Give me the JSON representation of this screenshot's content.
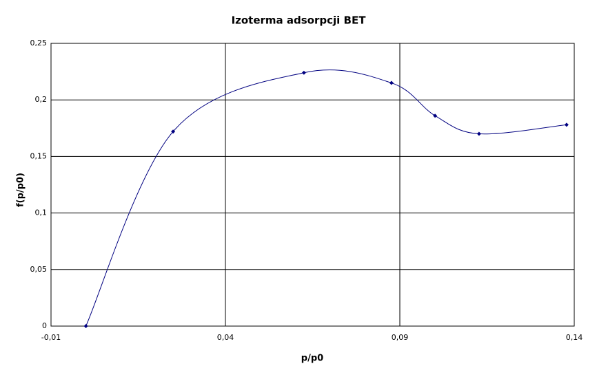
{
  "chart_data": {
    "type": "scatter",
    "title": "Izoterma adsorpcji BET",
    "x_label": "p/p0",
    "y_label": "f(p/p0)",
    "series": [
      {
        "name": "f(p/p0)",
        "color": "#000080",
        "x": [
          0.0,
          0.025,
          0.0625,
          0.0876,
          0.1001,
          0.1127,
          0.1378
        ],
        "values": [
          0,
          0.172,
          0.224,
          0.215,
          0.186,
          0.17,
          0.178
        ]
      }
    ],
    "xlim": [
      -0.01,
      0.14
    ],
    "xticks": [
      {
        "value": -0.01,
        "label": "-0,01"
      },
      {
        "value": 0.04,
        "label": "0,04"
      },
      {
        "value": 0.09,
        "label": "0,09"
      },
      {
        "value": 0.14,
        "label": "0,14"
      }
    ],
    "ylim": [
      0,
      0.25
    ],
    "yticks": [
      0,
      {
        "value": 0.05,
        "label": "0,05"
      },
      {
        "value": 0.1,
        "label": "0,1"
      },
      {
        "value": 0.15,
        "label": "0,15"
      },
      {
        "value": 0.2,
        "label": "0,2"
      },
      {
        "value": 0.25,
        "label": "0,25"
      }
    ],
    "grid": true,
    "smooth": true
  }
}
